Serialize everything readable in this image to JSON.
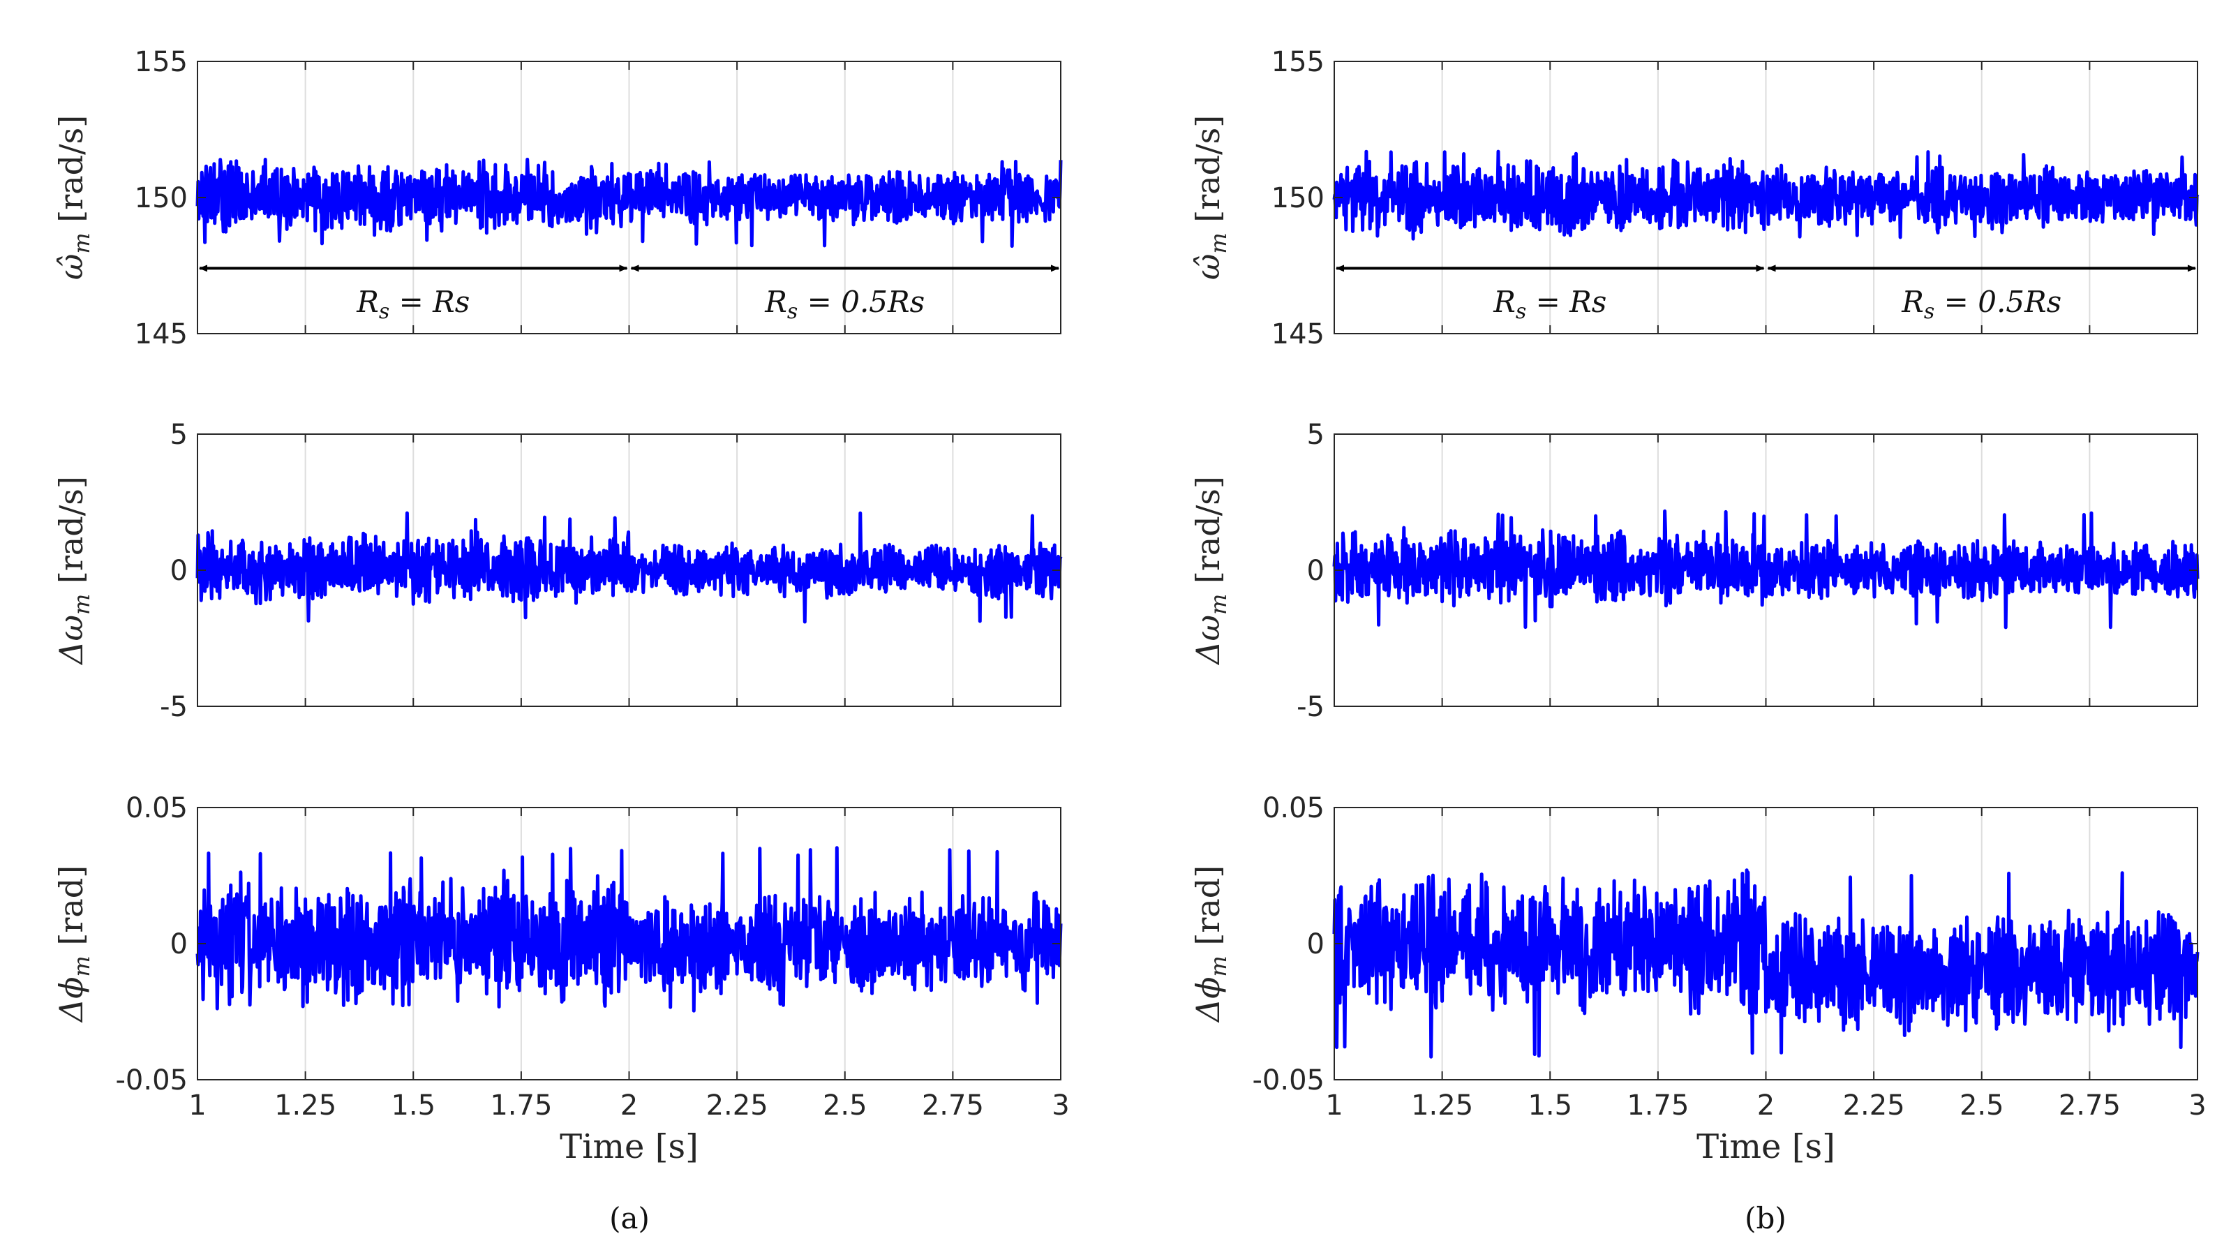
{
  "figure": {
    "line_color": "#0000ff",
    "grid_color": "#dddddd",
    "axis_color": "#262626",
    "columns": [
      {
        "caption": "(a)",
        "key": "a"
      },
      {
        "caption": "(b)",
        "key": "b"
      }
    ]
  },
  "chart_data": [
    {
      "id": "a-omega",
      "column": "a",
      "type": "line",
      "title": "",
      "xlabel": "",
      "ylabel_main": "ω̂",
      "ylabel_sub": "m",
      "ylabel_unit": " [rad/s]",
      "xlim": [
        1,
        3
      ],
      "ylim": [
        145,
        155
      ],
      "xticks": [
        1,
        1.25,
        1.5,
        1.75,
        2,
        2.25,
        2.5,
        2.75,
        3
      ],
      "yticks": [
        145,
        150,
        155
      ],
      "ytick_labels": [
        "145",
        "150",
        "155"
      ],
      "show_xtick_labels": false,
      "grid": "x",
      "signal": {
        "mean_before": 150,
        "mean_after": 150,
        "amp_before": 1.3,
        "amp_after": 1.0,
        "spike_max": 151.4,
        "spike_min": 148.2
      },
      "annotations": [
        {
          "type": "arrow",
          "y": 147.4,
          "x_from": 1,
          "x_to": 2
        },
        {
          "type": "arrow",
          "y": 147.4,
          "x_from": 2,
          "x_to": 3
        },
        {
          "type": "text",
          "text": "R_s = Rs",
          "x": 1.5,
          "y": 146.2
        },
        {
          "type": "text",
          "text": "R_s = 0.5Rs",
          "x": 2.5,
          "y": 146.2
        }
      ]
    },
    {
      "id": "a-domega",
      "column": "a",
      "type": "line",
      "ylabel_main": "Δω",
      "ylabel_sub": "m",
      "ylabel_unit": " [rad/s]",
      "xlim": [
        1,
        3
      ],
      "ylim": [
        -5,
        5
      ],
      "xticks": [
        1,
        1.25,
        1.5,
        1.75,
        2,
        2.25,
        2.5,
        2.75,
        3
      ],
      "yticks": [
        -5,
        0,
        5
      ],
      "ytick_labels": [
        "-5",
        "0",
        "5"
      ],
      "show_xtick_labels": false,
      "grid": "x",
      "signal": {
        "mean_before": 0.1,
        "mean_after": 0.0,
        "amp_before": 1.3,
        "amp_after": 1.0,
        "spike_max": 2.1,
        "spike_min": -1.9
      },
      "annotations": []
    },
    {
      "id": "a-dphi",
      "column": "a",
      "type": "line",
      "ylabel_main": "Δϕ",
      "ylabel_sub": "m",
      "ylabel_unit": " [rad]",
      "xlabel": "Time [s]",
      "xlim": [
        1,
        3
      ],
      "ylim": [
        -0.05,
        0.05
      ],
      "xticks": [
        1,
        1.25,
        1.5,
        1.75,
        2,
        2.25,
        2.5,
        2.75,
        3
      ],
      "xtick_labels": [
        "1",
        "1.25",
        "1.5",
        "1.75",
        "2",
        "2.25",
        "2.5",
        "2.75",
        "3"
      ],
      "yticks": [
        -0.05,
        0,
        0.05
      ],
      "ytick_labels": [
        "-0.05",
        "0",
        "0.05"
      ],
      "show_xtick_labels": true,
      "grid": "x",
      "signal": {
        "mean_before": 0.001,
        "mean_after": 0.0,
        "amp_before": 0.024,
        "amp_after": 0.018,
        "spike_max": 0.036,
        "spike_min": -0.025
      },
      "annotations": []
    },
    {
      "id": "b-omega",
      "column": "b",
      "type": "line",
      "ylabel_main": "ω̂",
      "ylabel_sub": "m",
      "ylabel_unit": " [rad/s]",
      "xlim": [
        1,
        3
      ],
      "ylim": [
        145,
        155
      ],
      "xticks": [
        1,
        1.25,
        1.5,
        1.75,
        2,
        2.25,
        2.5,
        2.75,
        3
      ],
      "yticks": [
        145,
        150,
        155
      ],
      "ytick_labels": [
        "145",
        "150",
        "155"
      ],
      "show_xtick_labels": false,
      "grid": "x",
      "signal": {
        "mean_before": 150,
        "mean_after": 150,
        "amp_before": 1.4,
        "amp_after": 1.1,
        "spike_max": 151.7,
        "spike_min": 148.5
      },
      "annotations": [
        {
          "type": "arrow",
          "y": 147.4,
          "x_from": 1,
          "x_to": 2
        },
        {
          "type": "arrow",
          "y": 147.4,
          "x_from": 2,
          "x_to": 3
        },
        {
          "type": "text",
          "text": "R_s = Rs",
          "x": 1.5,
          "y": 146.2
        },
        {
          "type": "text",
          "text": "R_s = 0.5Rs",
          "x": 2.5,
          "y": 146.2
        }
      ]
    },
    {
      "id": "b-domega",
      "column": "b",
      "type": "line",
      "ylabel_main": "Δω",
      "ylabel_sub": "m",
      "ylabel_unit": " [rad/s]",
      "xlim": [
        1,
        3
      ],
      "ylim": [
        -5,
        5
      ],
      "xticks": [
        1,
        1.25,
        1.5,
        1.75,
        2,
        2.25,
        2.5,
        2.75,
        3
      ],
      "yticks": [
        -5,
        0,
        5
      ],
      "ytick_labels": [
        "-5",
        "0",
        "5"
      ],
      "show_xtick_labels": false,
      "grid": "x",
      "signal": {
        "mean_before": 0.1,
        "mean_after": 0.0,
        "amp_before": 1.4,
        "amp_after": 1.1,
        "spike_max": 2.2,
        "spike_min": -2.1
      },
      "annotations": []
    },
    {
      "id": "b-dphi",
      "column": "b",
      "type": "line",
      "ylabel_main": "Δϕ",
      "ylabel_sub": "m",
      "ylabel_unit": " [rad]",
      "xlabel": "Time [s]",
      "xlim": [
        1,
        3
      ],
      "ylim": [
        -0.05,
        0.05
      ],
      "xticks": [
        1,
        1.25,
        1.5,
        1.75,
        2,
        2.25,
        2.5,
        2.75,
        3
      ],
      "xtick_labels": [
        "1",
        "1.25",
        "1.5",
        "1.75",
        "2",
        "2.25",
        "2.5",
        "2.75",
        "3"
      ],
      "yticks": [
        -0.05,
        0,
        0.05
      ],
      "ytick_labels": [
        "-0.05",
        "0",
        "0.05"
      ],
      "show_xtick_labels": true,
      "grid": "x",
      "signal": {
        "mean_before": 0.0,
        "mean_after": -0.01,
        "amp_before": 0.025,
        "amp_after": 0.022,
        "spike_max": 0.028,
        "spike_min": -0.042
      },
      "annotations": []
    }
  ]
}
